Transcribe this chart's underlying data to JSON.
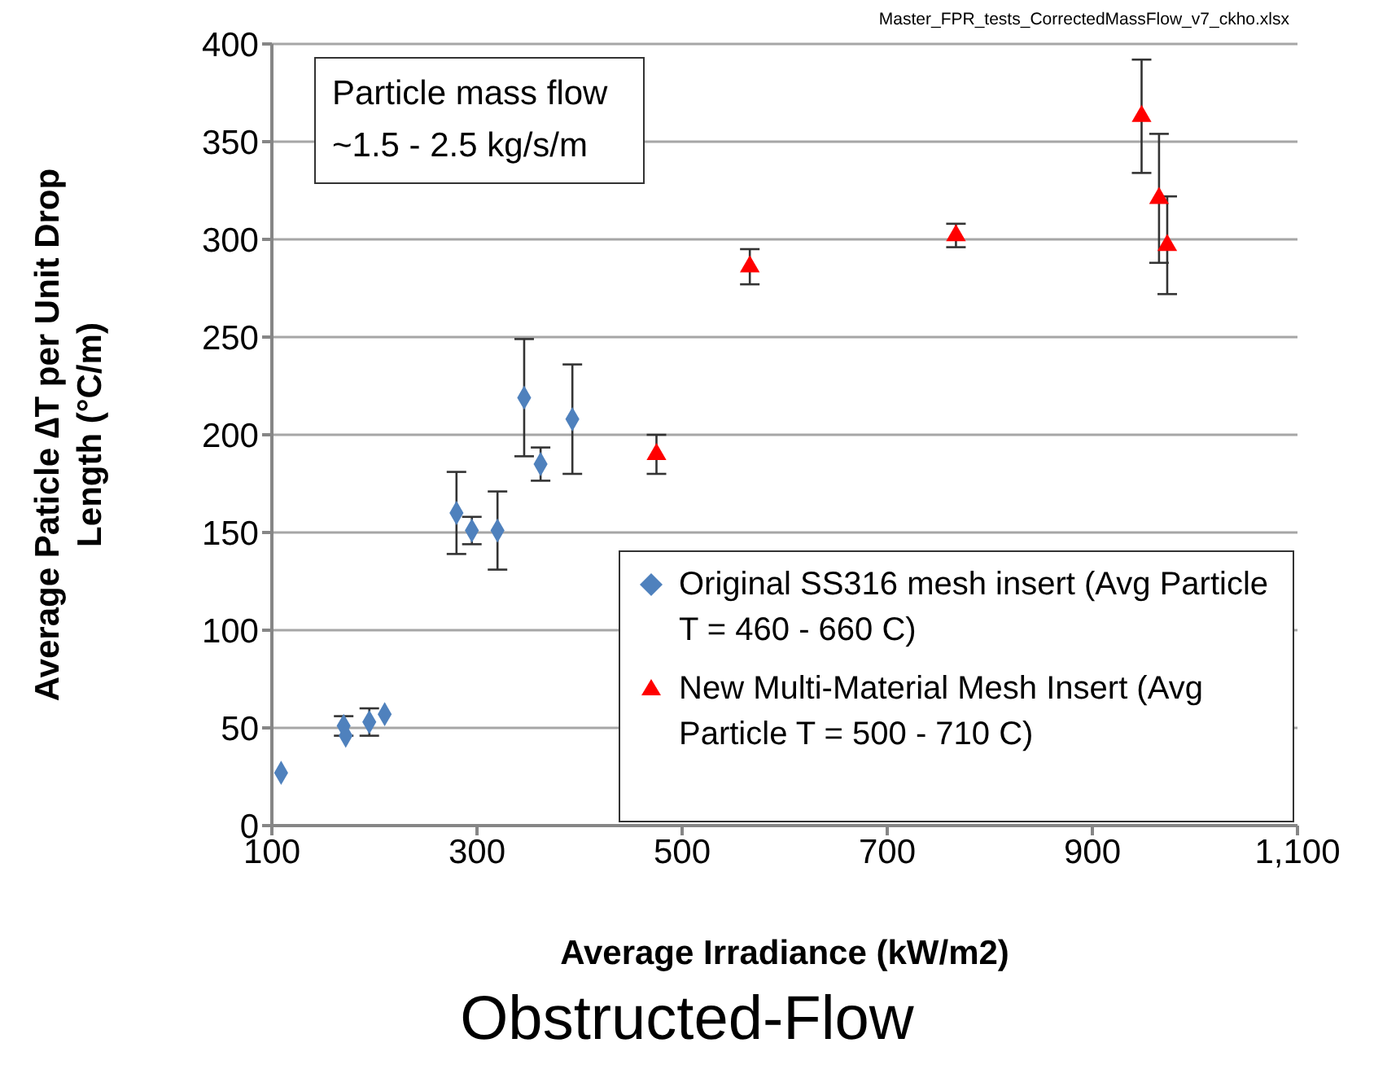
{
  "chart_data": {
    "type": "scatter",
    "title": "Obstructed-Flow",
    "xlabel": "Average Irradiance (kW/m2)",
    "ylabel": "Average Paticle ∆T per Unit Drop Length (°C/m)",
    "annotations": [
      "Particle mass flow ~1.5 - 2.5 kg/s/m",
      "Master_FPR_tests_CorrectedMassFlow_v7_ckho.xlsx"
    ],
    "series": [
      {
        "name": "Original SS316 mesh insert (Avg Particle T = 460 - 660 C)",
        "color": "#4f81bd",
        "marker": "diamond",
        "x": [
          109,
          170,
          172,
          195,
          210,
          280,
          295,
          320,
          346,
          362,
          393
        ],
        "values": [
          27,
          51,
          46,
          53,
          57,
          160,
          151,
          151,
          219,
          185,
          208
        ],
        "errors": [
          null,
          5,
          null,
          7,
          null,
          21,
          7,
          20,
          30,
          8.5,
          28
        ]
      },
      {
        "name": "New Multi-Material Mesh Insert (Avg Particle T = 500 - 710 C)",
        "color": "#ff0000",
        "marker": "triangle",
        "x": [
          475,
          566,
          767,
          948,
          965,
          973
        ],
        "values": [
          190,
          286,
          302,
          363,
          321,
          297
        ],
        "errors": [
          10,
          9,
          6,
          29,
          33,
          25
        ]
      }
    ],
    "xlim": [
      100,
      1100
    ],
    "xticks": [
      100,
      300,
      500,
      700,
      900,
      {
        "value": 1100,
        "label": "1,100"
      }
    ],
    "ylim": [
      0,
      400
    ],
    "yticks": [
      0,
      50,
      100,
      150,
      200,
      250,
      300,
      350,
      400
    ],
    "grid": "y",
    "legend": "bottom right"
  }
}
